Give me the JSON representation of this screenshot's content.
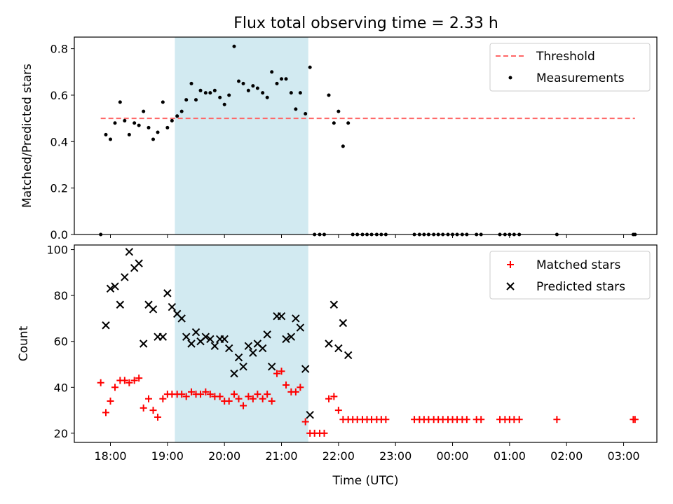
{
  "page": {
    "title": "Flux total observing time = 2.33 h"
  },
  "chart_data": [
    {
      "type": "scatter",
      "title": "Flux total observing time = 2.33 h",
      "xlabel": "",
      "ylabel": "Matched/Predicted stars",
      "x_tick_labels": [
        "18:00",
        "19:00",
        "20:00",
        "21:00",
        "22:00",
        "23:00",
        "00:00",
        "01:00",
        "02:00",
        "03:00"
      ],
      "y_tick_labels": [
        "0.0",
        "0.2",
        "0.4",
        "0.6",
        "0.8"
      ],
      "y_ticks": [
        0.0,
        0.2,
        0.4,
        0.6,
        0.8
      ],
      "xlim": [
        "17:22",
        "03:35 (+1 day)"
      ],
      "ylim": [
        0.0,
        0.85
      ],
      "x_unit": "hours after 00:00 UTC on the start day (24 = next midnight)",
      "grid": false,
      "legend_position": "top-right",
      "highlight_band": {
        "x": [
          19.13,
          21.47
        ],
        "color": "#add8e6"
      },
      "threshold": {
        "name": "Threshold",
        "y": 0.5,
        "x": [
          17.83,
          27.2
        ],
        "color": "#ff6666",
        "style": "dashed"
      },
      "series": [
        {
          "name": "Measurements",
          "marker": "dot",
          "color": "#000000",
          "points": [
            [
              17.83,
              0.0
            ],
            [
              17.92,
              0.43
            ],
            [
              18.0,
              0.41
            ],
            [
              18.08,
              0.48
            ],
            [
              18.17,
              0.57
            ],
            [
              18.25,
              0.49
            ],
            [
              18.33,
              0.43
            ],
            [
              18.42,
              0.48
            ],
            [
              18.5,
              0.47
            ],
            [
              18.58,
              0.53
            ],
            [
              18.67,
              0.46
            ],
            [
              18.75,
              0.41
            ],
            [
              18.83,
              0.44
            ],
            [
              18.92,
              0.57
            ],
            [
              19.0,
              0.46
            ],
            [
              19.08,
              0.49
            ],
            [
              19.17,
              0.51
            ],
            [
              19.25,
              0.53
            ],
            [
              19.33,
              0.58
            ],
            [
              19.42,
              0.65
            ],
            [
              19.5,
              0.58
            ],
            [
              19.58,
              0.62
            ],
            [
              19.67,
              0.61
            ],
            [
              19.75,
              0.61
            ],
            [
              19.83,
              0.62
            ],
            [
              19.92,
              0.59
            ],
            [
              20.0,
              0.56
            ],
            [
              20.08,
              0.6
            ],
            [
              20.17,
              0.81
            ],
            [
              20.25,
              0.66
            ],
            [
              20.33,
              0.65
            ],
            [
              20.42,
              0.62
            ],
            [
              20.5,
              0.64
            ],
            [
              20.58,
              0.63
            ],
            [
              20.67,
              0.61
            ],
            [
              20.75,
              0.59
            ],
            [
              20.83,
              0.7
            ],
            [
              20.92,
              0.65
            ],
            [
              21.0,
              0.67
            ],
            [
              21.08,
              0.67
            ],
            [
              21.17,
              0.61
            ],
            [
              21.25,
              0.54
            ],
            [
              21.33,
              0.61
            ],
            [
              21.42,
              0.52
            ],
            [
              21.5,
              0.72
            ],
            [
              21.58,
              0.0
            ],
            [
              21.67,
              0.0
            ],
            [
              21.75,
              0.0
            ],
            [
              21.83,
              0.6
            ],
            [
              21.92,
              0.48
            ],
            [
              22.0,
              0.53
            ],
            [
              22.08,
              0.38
            ],
            [
              22.17,
              0.48
            ],
            [
              22.25,
              0.0
            ],
            [
              22.33,
              0.0
            ],
            [
              22.42,
              0.0
            ],
            [
              22.5,
              0.0
            ],
            [
              22.58,
              0.0
            ],
            [
              22.67,
              0.0
            ],
            [
              22.75,
              0.0
            ],
            [
              22.83,
              0.0
            ],
            [
              23.33,
              0.0
            ],
            [
              23.42,
              0.0
            ],
            [
              23.5,
              0.0
            ],
            [
              23.58,
              0.0
            ],
            [
              23.67,
              0.0
            ],
            [
              23.75,
              0.0
            ],
            [
              23.83,
              0.0
            ],
            [
              23.92,
              0.0
            ],
            [
              24.0,
              0.0
            ],
            [
              24.08,
              0.0
            ],
            [
              24.17,
              0.0
            ],
            [
              24.25,
              0.0
            ],
            [
              24.42,
              0.0
            ],
            [
              24.5,
              0.0
            ],
            [
              24.83,
              0.0
            ],
            [
              24.92,
              0.0
            ],
            [
              25.0,
              0.0
            ],
            [
              25.08,
              0.0
            ],
            [
              25.17,
              0.0
            ],
            [
              25.83,
              0.0
            ],
            [
              27.17,
              0.0
            ],
            [
              27.2,
              0.0
            ]
          ]
        }
      ]
    },
    {
      "type": "scatter",
      "title": "",
      "xlabel": "Time (UTC)",
      "ylabel": "Count",
      "x_tick_labels": [
        "18:00",
        "19:00",
        "20:00",
        "21:00",
        "22:00",
        "23:00",
        "00:00",
        "01:00",
        "02:00",
        "03:00"
      ],
      "y_tick_labels": [
        "20",
        "40",
        "60",
        "80",
        "100"
      ],
      "y_ticks": [
        20,
        40,
        60,
        80,
        100
      ],
      "xlim": [
        "17:22",
        "03:35 (+1 day)"
      ],
      "ylim": [
        16,
        102
      ],
      "x_unit": "hours after 00:00 UTC on the start day (24 = next midnight)",
      "grid": false,
      "legend_position": "top-right",
      "highlight_band": {
        "x": [
          19.13,
          21.47
        ],
        "color": "#add8e6"
      },
      "series": [
        {
          "name": "Matched stars",
          "marker": "plus",
          "color": "#ff0000",
          "points": [
            [
              17.83,
              42
            ],
            [
              17.92,
              29
            ],
            [
              18.0,
              34
            ],
            [
              18.08,
              40
            ],
            [
              18.17,
              43
            ],
            [
              18.25,
              43
            ],
            [
              18.33,
              42
            ],
            [
              18.42,
              43
            ],
            [
              18.5,
              44
            ],
            [
              18.58,
              31
            ],
            [
              18.67,
              35
            ],
            [
              18.75,
              30
            ],
            [
              18.83,
              27
            ],
            [
              18.92,
              35
            ],
            [
              19.0,
              37
            ],
            [
              19.08,
              37
            ],
            [
              19.17,
              37
            ],
            [
              19.25,
              37
            ],
            [
              19.33,
              36
            ],
            [
              19.42,
              38
            ],
            [
              19.5,
              37
            ],
            [
              19.58,
              37
            ],
            [
              19.67,
              38
            ],
            [
              19.75,
              37
            ],
            [
              19.83,
              36
            ],
            [
              19.92,
              36
            ],
            [
              20.0,
              34
            ],
            [
              20.08,
              34
            ],
            [
              20.17,
              37
            ],
            [
              20.25,
              35
            ],
            [
              20.33,
              32
            ],
            [
              20.42,
              36
            ],
            [
              20.5,
              35
            ],
            [
              20.58,
              37
            ],
            [
              20.67,
              35
            ],
            [
              20.75,
              37
            ],
            [
              20.83,
              34
            ],
            [
              20.92,
              46
            ],
            [
              21.0,
              47
            ],
            [
              21.08,
              41
            ],
            [
              21.17,
              38
            ],
            [
              21.25,
              38
            ],
            [
              21.33,
              40
            ],
            [
              21.42,
              25
            ],
            [
              21.5,
              20
            ],
            [
              21.58,
              20
            ],
            [
              21.67,
              20
            ],
            [
              21.75,
              20
            ],
            [
              21.83,
              35
            ],
            [
              21.92,
              36
            ],
            [
              22.0,
              30
            ],
            [
              22.08,
              26
            ],
            [
              22.17,
              26
            ],
            [
              22.25,
              26
            ],
            [
              22.33,
              26
            ],
            [
              22.42,
              26
            ],
            [
              22.5,
              26
            ],
            [
              22.58,
              26
            ],
            [
              22.67,
              26
            ],
            [
              22.75,
              26
            ],
            [
              22.83,
              26
            ],
            [
              23.33,
              26
            ],
            [
              23.42,
              26
            ],
            [
              23.5,
              26
            ],
            [
              23.58,
              26
            ],
            [
              23.67,
              26
            ],
            [
              23.75,
              26
            ],
            [
              23.83,
              26
            ],
            [
              23.92,
              26
            ],
            [
              24.0,
              26
            ],
            [
              24.08,
              26
            ],
            [
              24.17,
              26
            ],
            [
              24.25,
              26
            ],
            [
              24.42,
              26
            ],
            [
              24.5,
              26
            ],
            [
              24.83,
              26
            ],
            [
              24.92,
              26
            ],
            [
              25.0,
              26
            ],
            [
              25.08,
              26
            ],
            [
              25.17,
              26
            ],
            [
              25.83,
              26
            ],
            [
              27.17,
              26
            ],
            [
              27.2,
              26
            ]
          ]
        },
        {
          "name": "Predicted stars",
          "marker": "x",
          "color": "#000000",
          "points": [
            [
              17.92,
              67
            ],
            [
              18.0,
              83
            ],
            [
              18.08,
              84
            ],
            [
              18.17,
              76
            ],
            [
              18.25,
              88
            ],
            [
              18.33,
              99
            ],
            [
              18.42,
              92
            ],
            [
              18.5,
              94
            ],
            [
              18.58,
              59
            ],
            [
              18.67,
              76
            ],
            [
              18.75,
              74
            ],
            [
              18.83,
              62
            ],
            [
              18.92,
              62
            ],
            [
              19.0,
              81
            ],
            [
              19.08,
              75
            ],
            [
              19.17,
              72
            ],
            [
              19.25,
              70
            ],
            [
              19.33,
              62
            ],
            [
              19.42,
              59
            ],
            [
              19.5,
              64
            ],
            [
              19.58,
              60
            ],
            [
              19.67,
              62
            ],
            [
              19.75,
              61
            ],
            [
              19.83,
              58
            ],
            [
              19.92,
              61
            ],
            [
              20.0,
              61
            ],
            [
              20.08,
              57
            ],
            [
              20.17,
              46
            ],
            [
              20.25,
              53
            ],
            [
              20.33,
              49
            ],
            [
              20.42,
              58
            ],
            [
              20.5,
              55
            ],
            [
              20.58,
              59
            ],
            [
              20.67,
              57
            ],
            [
              20.75,
              63
            ],
            [
              20.83,
              49
            ],
            [
              20.92,
              71
            ],
            [
              21.0,
              71
            ],
            [
              21.08,
              61
            ],
            [
              21.17,
              62
            ],
            [
              21.25,
              70
            ],
            [
              21.33,
              66
            ],
            [
              21.42,
              48
            ],
            [
              21.5,
              28
            ],
            [
              21.83,
              59
            ],
            [
              21.92,
              76
            ],
            [
              22.0,
              57
            ],
            [
              22.08,
              68
            ],
            [
              22.17,
              54
            ]
          ]
        }
      ]
    }
  ]
}
